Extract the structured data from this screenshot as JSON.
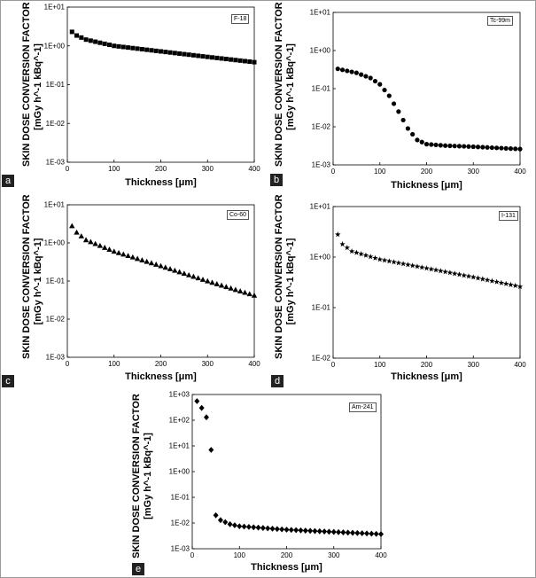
{
  "ylabel_line1": "SKIN DOSE CONVERSION FACTOR",
  "ylabel_line2": "[mGy h^-1 kBq^-1]",
  "xlabel": "Thickness [μm]",
  "colors": {
    "marker": "#000000",
    "badge": "#222222",
    "frame": "#9a9a9a"
  },
  "chart_data": [
    {
      "type": "scatter",
      "panel": "a",
      "legend": "F-18",
      "marker": "square",
      "xlim": [
        0,
        400
      ],
      "xticks": [
        0,
        100,
        200,
        300,
        400
      ],
      "ylog_decades": [
        -3,
        1
      ],
      "yticks": [
        "1E-03",
        "1E-02",
        "1E-01",
        "1E+00",
        "1E+01"
      ],
      "x_start": 10,
      "x_step": 10,
      "x_end": 400,
      "y_key": [
        [
          10,
          2.3
        ],
        [
          20,
          1.85
        ],
        [
          40,
          1.45
        ],
        [
          100,
          1.0
        ],
        [
          200,
          0.72
        ],
        [
          300,
          0.52
        ],
        [
          400,
          0.38
        ]
      ]
    },
    {
      "type": "scatter",
      "panel": "b",
      "legend": "Tc-99m",
      "marker": "circle",
      "xlim": [
        0,
        400
      ],
      "xticks": [
        0,
        100,
        200,
        300,
        400
      ],
      "ylog_decades": [
        -3,
        1
      ],
      "yticks": [
        "1E-03",
        "1E-02",
        "1E-01",
        "1E+00",
        "1E+01"
      ],
      "x_start": 10,
      "x_step": 10,
      "x_end": 400,
      "y_key": [
        [
          10,
          0.33
        ],
        [
          50,
          0.26
        ],
        [
          80,
          0.19
        ],
        [
          100,
          0.13
        ],
        [
          120,
          0.065
        ],
        [
          140,
          0.025
        ],
        [
          160,
          0.009
        ],
        [
          180,
          0.0045
        ],
        [
          200,
          0.0035
        ],
        [
          240,
          0.0032
        ],
        [
          300,
          0.003
        ],
        [
          400,
          0.0026
        ]
      ]
    },
    {
      "type": "scatter",
      "panel": "c",
      "legend": "Co-60",
      "marker": "triangle",
      "xlim": [
        0,
        400
      ],
      "xticks": [
        0,
        100,
        200,
        300,
        400
      ],
      "ylog_decades": [
        -3,
        1
      ],
      "yticks": [
        "1E-03",
        "1E-02",
        "1E-01",
        "1E+00",
        "1E+01"
      ],
      "x_start": 10,
      "x_step": 10,
      "x_end": 400,
      "y_key": [
        [
          10,
          2.8
        ],
        [
          20,
          1.9
        ],
        [
          40,
          1.2
        ],
        [
          100,
          0.6
        ],
        [
          200,
          0.25
        ],
        [
          300,
          0.1
        ],
        [
          400,
          0.042
        ]
      ]
    },
    {
      "type": "scatter",
      "panel": "d",
      "legend": "I-131",
      "marker": "star",
      "xlim": [
        0,
        400
      ],
      "xticks": [
        0,
        100,
        200,
        300,
        400
      ],
      "ylog_decades": [
        -2,
        1
      ],
      "yticks": [
        "1E-02",
        "1E-01",
        "1E+00",
        "1E+01"
      ],
      "x_start": 10,
      "x_step": 10,
      "x_end": 400,
      "y_key": [
        [
          10,
          2.8
        ],
        [
          20,
          1.8
        ],
        [
          40,
          1.3
        ],
        [
          100,
          0.9
        ],
        [
          200,
          0.6
        ],
        [
          300,
          0.4
        ],
        [
          400,
          0.26
        ]
      ]
    },
    {
      "type": "scatter",
      "panel": "e",
      "legend": "Am-241",
      "marker": "diamond",
      "xlim": [
        0,
        400
      ],
      "xticks": [
        0,
        100,
        200,
        300,
        400
      ],
      "ylog_decades": [
        -3,
        3
      ],
      "yticks": [
        "1E-03",
        "1E-02",
        "1E-01",
        "1E+00",
        "1E+01",
        "1E+02",
        "1E+03"
      ],
      "x_start": 10,
      "x_step": 10,
      "x_end": 400,
      "y_key": [
        [
          10,
          550
        ],
        [
          20,
          300
        ],
        [
          30,
          130
        ],
        [
          40,
          7
        ],
        [
          50,
          0.02
        ],
        [
          60,
          0.013
        ],
        [
          80,
          0.009
        ],
        [
          100,
          0.0075
        ],
        [
          200,
          0.0055
        ],
        [
          300,
          0.0045
        ],
        [
          400,
          0.0037
        ]
      ]
    }
  ]
}
